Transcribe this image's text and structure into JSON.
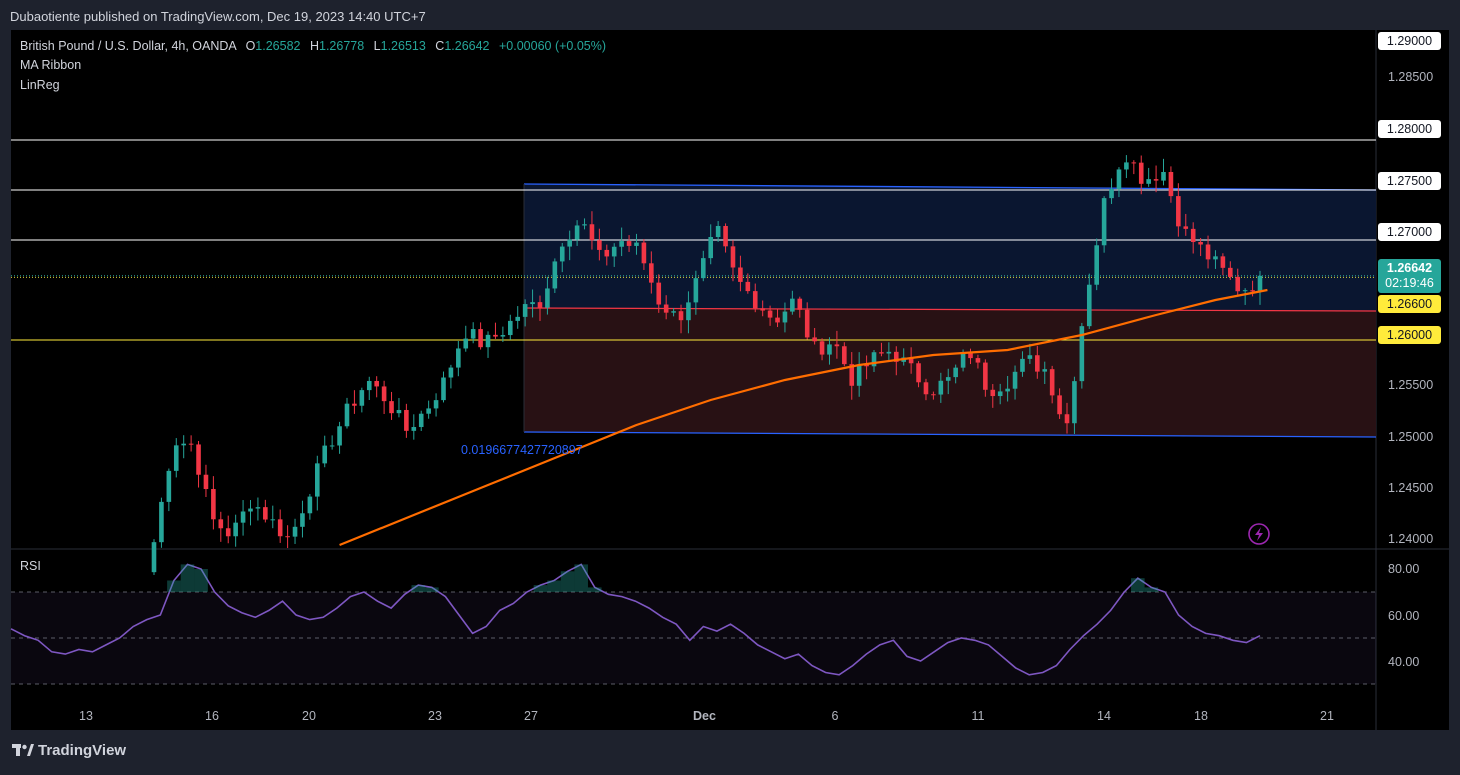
{
  "header": {
    "published": "Dubaotiente published on TradingView.com, Dec 19, 2023 14:40 UTC+7"
  },
  "legend": {
    "symbol": "British Pound / U.S. Dollar, 4h, OANDA",
    "o_label": "O",
    "o": "1.26582",
    "h_label": "H",
    "h": "1.26778",
    "l_label": "L",
    "l": "1.26513",
    "c_label": "C",
    "c": "1.26642",
    "change": "+0.00060 (+0.05%)",
    "indicators": [
      "MA Ribbon",
      "LinReg"
    ]
  },
  "price_axis": {
    "ticks": [
      "1.29000",
      "1.28500",
      "1.28000",
      "1.27500",
      "1.27000",
      "1.26642",
      "1.26600",
      "1.26000",
      "1.25500",
      "1.25000",
      "1.24500",
      "1.24000"
    ],
    "current_price": "1.26642",
    "countdown": "02:19:46"
  },
  "time_axis": {
    "labels": [
      "13",
      "16",
      "20",
      "23",
      "27",
      "Dec",
      "6",
      "11",
      "14",
      "18",
      "21"
    ]
  },
  "annotation": "0.0196677427720897",
  "rsi": {
    "label": "RSI",
    "ticks": [
      "80.00",
      "60.00",
      "40.00"
    ]
  },
  "brand": "TradingView",
  "colors": {
    "up": "#26a69a",
    "down": "#f23645",
    "ma": "#ff6d00",
    "rsi": "#7e57c2",
    "linreg": "#2962ff",
    "channel_up": "#0b1733",
    "channel_down": "#2a1215",
    "hline_white": "#ffffff",
    "hline_yellow": "#ffeb3b"
  },
  "chart_data": {
    "type": "candlestick",
    "symbol": "GBPUSD",
    "timeframe": "4h",
    "y_range": [
      1.2395,
      1.2915
    ],
    "horizontal_levels": [
      1.28,
      1.275,
      1.27,
      1.266,
      1.26
    ],
    "last_price": 1.26642,
    "regression_channel": {
      "upper": [
        [
          1.2756,
          1.275
        ]
      ],
      "mid": [
        [
          1.2632,
          1.2629
        ]
      ],
      "lower": [
        [
          1.2508,
          1.2503
        ]
      ],
      "deviation_label": "0.0196677427720897"
    },
    "close_path": [
      1.2398,
      1.25,
      1.2495,
      1.242,
      1.2405,
      1.244,
      1.242,
      1.24,
      1.245,
      1.2495,
      1.253,
      1.256,
      1.254,
      1.251,
      1.253,
      1.256,
      1.261,
      1.2595,
      1.261,
      1.263,
      1.264,
      1.27,
      1.272,
      1.268,
      1.27,
      1.269,
      1.264,
      1.262,
      1.266,
      1.271,
      1.266,
      1.264,
      1.262,
      1.264,
      1.259,
      1.26,
      1.256,
      1.258,
      1.259,
      1.257,
      1.255,
      1.256,
      1.259,
      1.255,
      1.256,
      1.258,
      1.257,
      1.251,
      1.264,
      1.274,
      1.279,
      1.276,
      1.277,
      1.271,
      1.269,
      1.267,
      1.265,
      1.266
    ],
    "ma_curve": [
      [
        25,
        1.2395
      ],
      [
        35,
        1.2425
      ],
      [
        45,
        1.2455
      ],
      [
        55,
        1.2485
      ],
      [
        65,
        1.2515
      ],
      [
        75,
        1.254
      ],
      [
        85,
        1.256
      ],
      [
        95,
        1.2575
      ],
      [
        105,
        1.2585
      ],
      [
        115,
        1.259
      ],
      [
        125,
        1.2605
      ],
      [
        135,
        1.2625
      ],
      [
        143,
        1.264
      ],
      [
        150,
        1.265
      ]
    ],
    "rsi": {
      "levels": [
        70,
        50,
        30
      ],
      "values": [
        54,
        51,
        49,
        44,
        43,
        45,
        44,
        47,
        50,
        55,
        58,
        60,
        75,
        82,
        80,
        70,
        64,
        61,
        59,
        62,
        66,
        60,
        58,
        59,
        63,
        68,
        70,
        66,
        63,
        69,
        73,
        72,
        68,
        60,
        52,
        55,
        62,
        65,
        70,
        73,
        75,
        79,
        82,
        72,
        69,
        68,
        66,
        63,
        59,
        56,
        49,
        55,
        53,
        56,
        52,
        47,
        44,
        41,
        43,
        38,
        35,
        34,
        38,
        43,
        47,
        49,
        42,
        40,
        44,
        48,
        50,
        49,
        47,
        42,
        37,
        34,
        35,
        38,
        45,
        51,
        56,
        62,
        70,
        76,
        72,
        70,
        60,
        55,
        52,
        51,
        49,
        48,
        51
      ]
    }
  }
}
